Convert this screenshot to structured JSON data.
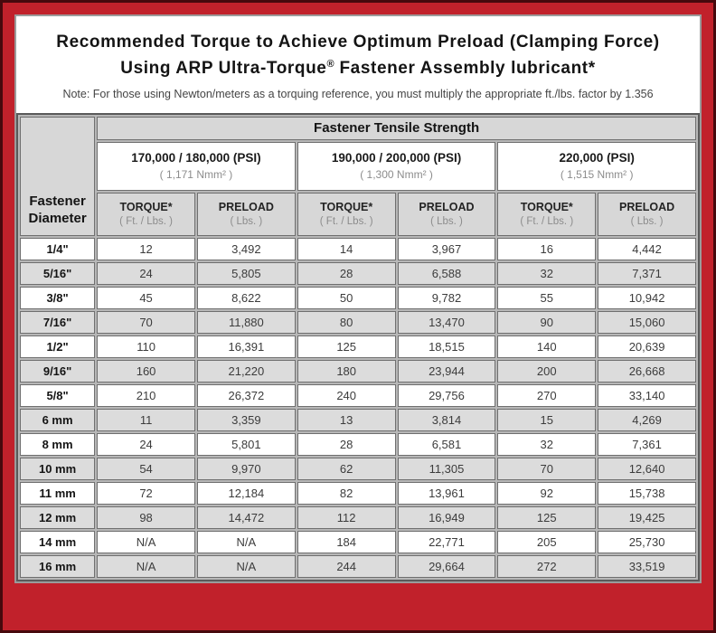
{
  "header": {
    "title_line1": "Recommended Torque to Achieve Optimum Preload (Clamping Force)",
    "title_line2_prefix": "Using ARP Ultra-Torque",
    "title_registered_mark": "®",
    "title_line2_suffix": " Fastener Assembly lubricant*",
    "note": "Note: For those using Newton/meters as a torquing reference, you must multiply the appropriate ft./lbs. factor by 1.356"
  },
  "table": {
    "corner_header": "Fastener Diameter",
    "group_header": "Fastener Tensile Strength",
    "strength_groups": [
      {
        "psi": "170,000 / 180,000 (PSI)",
        "nmm": "( 1,171 Nmm² )"
      },
      {
        "psi": "190,000 / 200,000 (PSI)",
        "nmm": "( 1,300 Nmm² )"
      },
      {
        "psi": "220,000 (PSI)",
        "nmm": "( 1,515 Nmm² )"
      }
    ],
    "sub_headers": {
      "torque_label": "TORQUE*",
      "torque_unit": "( Ft. / Lbs. )",
      "preload_label": "PRELOAD",
      "preload_unit": "( Lbs. )"
    },
    "rows": [
      {
        "diameter": "1/4\"",
        "values": [
          "12",
          "3,492",
          "14",
          "3,967",
          "16",
          "4,442"
        ]
      },
      {
        "diameter": "5/16\"",
        "values": [
          "24",
          "5,805",
          "28",
          "6,588",
          "32",
          "7,371"
        ]
      },
      {
        "diameter": "3/8\"",
        "values": [
          "45",
          "8,622",
          "50",
          "9,782",
          "55",
          "10,942"
        ]
      },
      {
        "diameter": "7/16\"",
        "values": [
          "70",
          "11,880",
          "80",
          "13,470",
          "90",
          "15,060"
        ]
      },
      {
        "diameter": "1/2\"",
        "values": [
          "110",
          "16,391",
          "125",
          "18,515",
          "140",
          "20,639"
        ]
      },
      {
        "diameter": "9/16\"",
        "values": [
          "160",
          "21,220",
          "180",
          "23,944",
          "200",
          "26,668"
        ]
      },
      {
        "diameter": "5/8\"",
        "values": [
          "210",
          "26,372",
          "240",
          "29,756",
          "270",
          "33,140"
        ]
      },
      {
        "diameter": "6 mm",
        "values": [
          "11",
          "3,359",
          "13",
          "3,814",
          "15",
          "4,269"
        ]
      },
      {
        "diameter": "8 mm",
        "values": [
          "24",
          "5,801",
          "28",
          "6,581",
          "32",
          "7,361"
        ]
      },
      {
        "diameter": "10 mm",
        "values": [
          "54",
          "9,970",
          "62",
          "11,305",
          "70",
          "12,640"
        ]
      },
      {
        "diameter": "11 mm",
        "values": [
          "72",
          "12,184",
          "82",
          "13,961",
          "92",
          "15,738"
        ]
      },
      {
        "diameter": "12 mm",
        "values": [
          "98",
          "14,472",
          "112",
          "16,949",
          "125",
          "19,425"
        ]
      },
      {
        "diameter": "14 mm",
        "values": [
          "N/A",
          "N/A",
          "184",
          "22,771",
          "205",
          "25,730"
        ]
      },
      {
        "diameter": "16 mm",
        "values": [
          "N/A",
          "N/A",
          "244",
          "29,664",
          "272",
          "33,519"
        ]
      }
    ]
  },
  "colors": {
    "frame_red": "#c1212b",
    "frame_edge_maroon": "#47090d",
    "header_gray": "#d7d7d7",
    "alt_row_gray": "#dcdcdc",
    "grid_gray": "#6f6f6f"
  }
}
